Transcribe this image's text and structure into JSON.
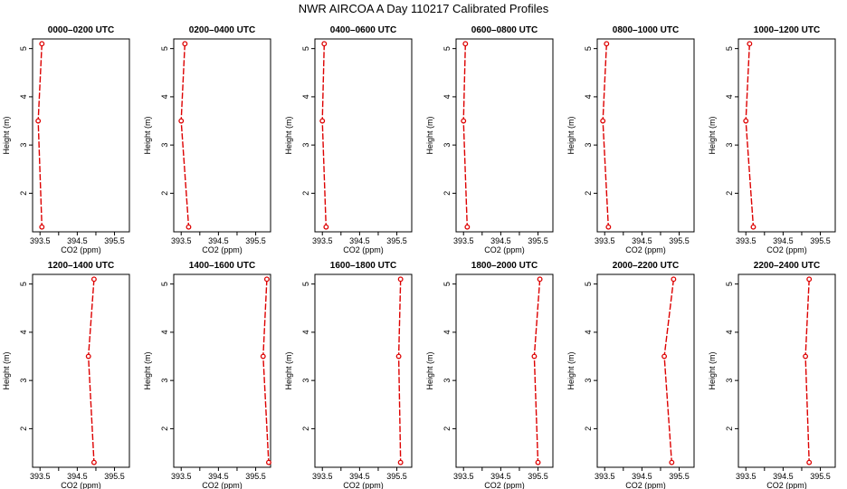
{
  "title": "NWR AIRCOA A  Day 110217  Calibrated Profiles",
  "colors": {
    "series": "#dd0000",
    "axis": "#000000"
  },
  "chart_data": [
    {
      "type": "line",
      "title": "0000–0200 UTC",
      "xlabel": "CO2 (ppm)",
      "ylabel": "Height (m)",
      "xlim": [
        393.3,
        395.9
      ],
      "ylim": [
        1.2,
        5.2
      ],
      "xticks": [
        "393.5",
        "394.5",
        "395.5"
      ],
      "yticks": [
        "2",
        "3",
        "4",
        "5"
      ],
      "series": [
        {
          "x": [
            393.55,
            393.45,
            393.55
          ],
          "y": [
            5.1,
            3.5,
            1.3
          ]
        }
      ]
    },
    {
      "type": "line",
      "title": "0200–0400 UTC",
      "xlabel": "CO2 (ppm)",
      "ylabel": "Height (m)",
      "xlim": [
        393.3,
        395.9
      ],
      "ylim": [
        1.2,
        5.2
      ],
      "xticks": [
        "393.5",
        "394.5",
        "395.5"
      ],
      "yticks": [
        "2",
        "3",
        "4",
        "5"
      ],
      "series": [
        {
          "x": [
            393.6,
            393.5,
            393.7
          ],
          "y": [
            5.1,
            3.5,
            1.3
          ]
        }
      ]
    },
    {
      "type": "line",
      "title": "0400–0600 UTC",
      "xlabel": "CO2 (ppm)",
      "ylabel": "Height (m)",
      "xlim": [
        393.3,
        395.9
      ],
      "ylim": [
        1.2,
        5.2
      ],
      "xticks": [
        "393.5",
        "394.5",
        "395.5"
      ],
      "yticks": [
        "2",
        "3",
        "4",
        "5"
      ],
      "series": [
        {
          "x": [
            393.55,
            393.5,
            393.6
          ],
          "y": [
            5.1,
            3.5,
            1.3
          ]
        }
      ]
    },
    {
      "type": "line",
      "title": "0600–0800 UTC",
      "xlabel": "CO2 (ppm)",
      "ylabel": "Height (m)",
      "xlim": [
        393.3,
        395.9
      ],
      "ylim": [
        1.2,
        5.2
      ],
      "xticks": [
        "393.5",
        "394.5",
        "395.5"
      ],
      "yticks": [
        "2",
        "3",
        "4",
        "5"
      ],
      "series": [
        {
          "x": [
            393.55,
            393.5,
            393.6
          ],
          "y": [
            5.1,
            3.5,
            1.3
          ]
        }
      ]
    },
    {
      "type": "line",
      "title": "0800–1000 UTC",
      "xlabel": "CO2 (ppm)",
      "ylabel": "Height (m)",
      "xlim": [
        393.3,
        395.9
      ],
      "ylim": [
        1.2,
        5.2
      ],
      "xticks": [
        "393.5",
        "394.5",
        "395.5"
      ],
      "yticks": [
        "2",
        "3",
        "4",
        "5"
      ],
      "series": [
        {
          "x": [
            393.55,
            393.45,
            393.6
          ],
          "y": [
            5.1,
            3.5,
            1.3
          ]
        }
      ]
    },
    {
      "type": "line",
      "title": "1000–1200 UTC",
      "xlabel": "CO2 (ppm)",
      "ylabel": "Height (m)",
      "xlim": [
        393.3,
        395.9
      ],
      "ylim": [
        1.2,
        5.2
      ],
      "xticks": [
        "393.5",
        "394.5",
        "395.5"
      ],
      "yticks": [
        "2",
        "3",
        "4",
        "5"
      ],
      "series": [
        {
          "x": [
            393.6,
            393.5,
            393.7
          ],
          "y": [
            5.1,
            3.5,
            1.3
          ]
        }
      ]
    },
    {
      "type": "line",
      "title": "1200–1400 UTC",
      "xlabel": "CO2 (ppm)",
      "ylabel": "Height (m)",
      "xlim": [
        393.3,
        395.9
      ],
      "ylim": [
        1.2,
        5.2
      ],
      "xticks": [
        "393.5",
        "394.5",
        "395.5"
      ],
      "yticks": [
        "2",
        "3",
        "4",
        "5"
      ],
      "series": [
        {
          "x": [
            394.95,
            394.8,
            394.95
          ],
          "y": [
            5.1,
            3.5,
            1.3
          ]
        }
      ]
    },
    {
      "type": "line",
      "title": "1400–1600 UTC",
      "xlabel": "CO2 (ppm)",
      "ylabel": "Height (m)",
      "xlim": [
        393.3,
        395.9
      ],
      "ylim": [
        1.2,
        5.2
      ],
      "xticks": [
        "393.5",
        "394.5",
        "395.5"
      ],
      "yticks": [
        "2",
        "3",
        "4",
        "5"
      ],
      "series": [
        {
          "x": [
            395.8,
            395.7,
            395.85
          ],
          "y": [
            5.1,
            3.5,
            1.3
          ]
        }
      ]
    },
    {
      "type": "line",
      "title": "1600–1800 UTC",
      "xlabel": "CO2 (ppm)",
      "ylabel": "Height (m)",
      "xlim": [
        393.3,
        395.9
      ],
      "ylim": [
        1.2,
        5.2
      ],
      "xticks": [
        "393.5",
        "394.5",
        "395.5"
      ],
      "yticks": [
        "2",
        "3",
        "4",
        "5"
      ],
      "series": [
        {
          "x": [
            395.6,
            395.55,
            395.6
          ],
          "y": [
            5.1,
            3.5,
            1.3
          ]
        }
      ]
    },
    {
      "type": "line",
      "title": "1800–2000 UTC",
      "xlabel": "CO2 (ppm)",
      "ylabel": "Height (m)",
      "xlim": [
        393.3,
        395.9
      ],
      "ylim": [
        1.2,
        5.2
      ],
      "xticks": [
        "393.5",
        "394.5",
        "395.5"
      ],
      "yticks": [
        "2",
        "3",
        "4",
        "5"
      ],
      "series": [
        {
          "x": [
            395.55,
            395.4,
            395.5
          ],
          "y": [
            5.1,
            3.5,
            1.3
          ]
        }
      ]
    },
    {
      "type": "line",
      "title": "2000–2200 UTC",
      "xlabel": "CO2 (ppm)",
      "ylabel": "Height (m)",
      "xlim": [
        393.3,
        395.9
      ],
      "ylim": [
        1.2,
        5.2
      ],
      "xticks": [
        "393.5",
        "394.5",
        "395.5"
      ],
      "yticks": [
        "2",
        "3",
        "4",
        "5"
      ],
      "series": [
        {
          "x": [
            395.35,
            395.1,
            395.3
          ],
          "y": [
            5.1,
            3.5,
            1.3
          ]
        }
      ]
    },
    {
      "type": "line",
      "title": "2200–2400 UTC",
      "xlabel": "CO2 (ppm)",
      "ylabel": "Height (m)",
      "xlim": [
        393.3,
        395.9
      ],
      "ylim": [
        1.2,
        5.2
      ],
      "xticks": [
        "393.5",
        "394.5",
        "395.5"
      ],
      "yticks": [
        "2",
        "3",
        "4",
        "5"
      ],
      "series": [
        {
          "x": [
            395.2,
            395.1,
            395.2
          ],
          "y": [
            5.1,
            3.5,
            1.3
          ]
        }
      ]
    }
  ]
}
